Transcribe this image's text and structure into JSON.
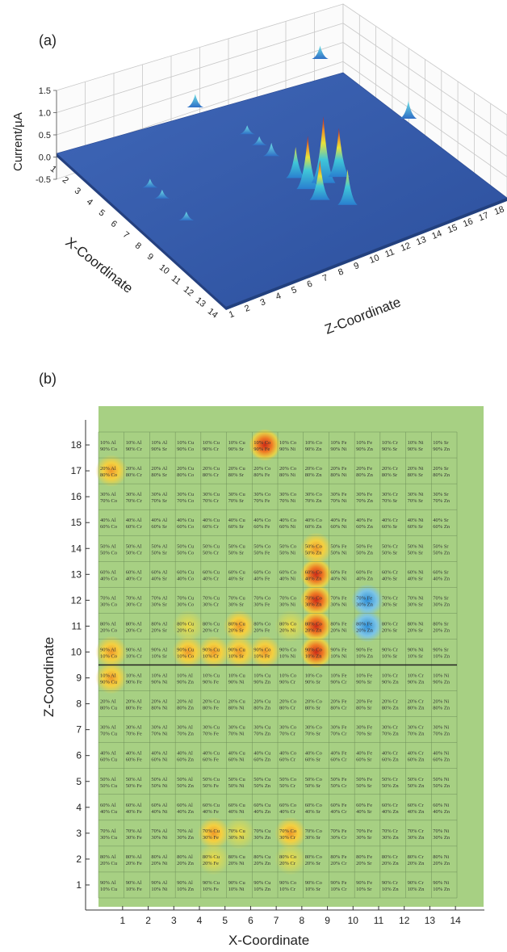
{
  "panel_a": {
    "label": "(a)",
    "chart_data": {
      "type": "surface3d",
      "zlabel": "Current/µA",
      "xlabel": "X-Coordinate",
      "ylabel": "Z-Coordinate",
      "ztick_labels": [
        "-0.5",
        "0.0",
        "0.5",
        "1.0",
        "1.5"
      ],
      "zlim": [
        -0.5,
        1.5
      ],
      "x_ticks": [
        "1",
        "2",
        "3",
        "4",
        "5",
        "6",
        "7",
        "8",
        "9",
        "10",
        "11",
        "12",
        "13",
        "14"
      ],
      "z_ticks": [
        "1",
        "2",
        "3",
        "4",
        "5",
        "6",
        "7",
        "8",
        "9",
        "10",
        "11",
        "12",
        "13",
        "14",
        "15",
        "16",
        "17",
        "18"
      ],
      "grid": true,
      "peaks": [
        {
          "x": 9,
          "z": 10,
          "current": 1.2
        },
        {
          "x": 9,
          "z": 11,
          "current": 1.5
        },
        {
          "x": 9,
          "z": 12,
          "current": 1.1
        },
        {
          "x": 8,
          "z": 10,
          "current": 0.7
        },
        {
          "x": 10,
          "z": 10,
          "current": 0.9
        },
        {
          "x": 7,
          "z": 18,
          "current": 0.4
        },
        {
          "x": 11,
          "z": 11,
          "current": 0.8
        },
        {
          "x": 1,
          "z": 9,
          "current": 0.3
        },
        {
          "x": 1,
          "z": 17,
          "current": 0.3
        },
        {
          "x": 4,
          "z": 10,
          "current": 0.2
        },
        {
          "x": 5,
          "z": 10,
          "current": 0.2
        },
        {
          "x": 6,
          "z": 10,
          "current": 0.3
        },
        {
          "x": 6,
          "z": 3,
          "current": 0.2
        },
        {
          "x": 5,
          "z": 3,
          "current": 0.2
        },
        {
          "x": 8,
          "z": 3,
          "current": 0.2
        }
      ]
    }
  },
  "panel_b": {
    "label": "(b)",
    "chart_data": {
      "type": "heatmap",
      "xlabel": "X-Coordinate",
      "ylabel": "Z-Coordinate",
      "x_ticks": [
        "1",
        "2",
        "3",
        "4",
        "5",
        "6",
        "7",
        "8",
        "9",
        "10",
        "11",
        "12",
        "13",
        "14"
      ],
      "y_ticks": [
        "1",
        "2",
        "3",
        "4",
        "5",
        "6",
        "7",
        "8",
        "9",
        "10",
        "11",
        "12",
        "13",
        "14",
        "15",
        "16",
        "17",
        "18"
      ],
      "column_pairs_top": [
        [
          "Al",
          "Co"
        ],
        [
          "Al",
          "Cr"
        ],
        [
          "Al",
          "Sr"
        ],
        [
          "Cu",
          "Co"
        ],
        [
          "Cu",
          "Cr"
        ],
        [
          "Cu",
          "Sr"
        ],
        [
          "Co",
          "Fe"
        ],
        [
          "Co",
          "Ni"
        ],
        [
          "Co",
          "Zn"
        ],
        [
          "Fe",
          "Ni"
        ],
        [
          "Fe",
          "Zn"
        ],
        [
          "Cr",
          "Sr"
        ],
        [
          "Ni",
          "Sr"
        ],
        [
          "Sr",
          "Zn"
        ]
      ],
      "column_pairs_bottom": [
        [
          "Al",
          "Cu"
        ],
        [
          "Al",
          "Fe"
        ],
        [
          "Al",
          "Ni"
        ],
        [
          "Al",
          "Zn"
        ],
        [
          "Cu",
          "Fe"
        ],
        [
          "Cu",
          "Ni"
        ],
        [
          "Cu",
          "Zn"
        ],
        [
          "Co",
          "Cr"
        ],
        [
          "Co",
          "Sr"
        ],
        [
          "Fe",
          "Cr"
        ],
        [
          "Fe",
          "Sr"
        ],
        [
          "Cr",
          "Zn"
        ],
        [
          "Cr",
          "Zn"
        ],
        [
          "Ni",
          "Zn"
        ]
      ],
      "hotspots": [
        {
          "x": 7,
          "z": 18,
          "level": "high"
        },
        {
          "x": 1,
          "z": 17,
          "level": "medium"
        },
        {
          "x": 9,
          "z": 14,
          "level": "medium"
        },
        {
          "x": 9,
          "z": 13,
          "level": "high"
        },
        {
          "x": 9,
          "z": 12,
          "level": "high"
        },
        {
          "x": 9,
          "z": 11,
          "level": "high"
        },
        {
          "x": 9,
          "z": 10,
          "level": "high"
        },
        {
          "x": 1,
          "z": 10,
          "level": "medium"
        },
        {
          "x": 4,
          "z": 10,
          "level": "medium"
        },
        {
          "x": 5,
          "z": 10,
          "level": "medium"
        },
        {
          "x": 6,
          "z": 10,
          "level": "medium"
        },
        {
          "x": 7,
          "z": 10,
          "level": "medium"
        },
        {
          "x": 1,
          "z": 9,
          "level": "medium"
        },
        {
          "x": 6,
          "z": 11,
          "level": "medium"
        },
        {
          "x": 4,
          "z": 11,
          "level": "low"
        },
        {
          "x": 8,
          "z": 11,
          "level": "low"
        },
        {
          "x": 11,
          "z": 12,
          "level": "cool"
        },
        {
          "x": 11,
          "z": 11,
          "level": "cool"
        },
        {
          "x": 5,
          "z": 3,
          "level": "medium"
        },
        {
          "x": 6,
          "z": 3,
          "level": "low"
        },
        {
          "x": 8,
          "z": 3,
          "level": "medium"
        },
        {
          "x": 8,
          "z": 2,
          "level": "low"
        },
        {
          "x": 5,
          "z": 2,
          "level": "low"
        }
      ],
      "colors": {
        "background": "#9ecb7c",
        "high": "#d9482b",
        "medium": "#f2c43a",
        "low": "#c9d65a",
        "cool": "#5fa9dc"
      }
    }
  }
}
